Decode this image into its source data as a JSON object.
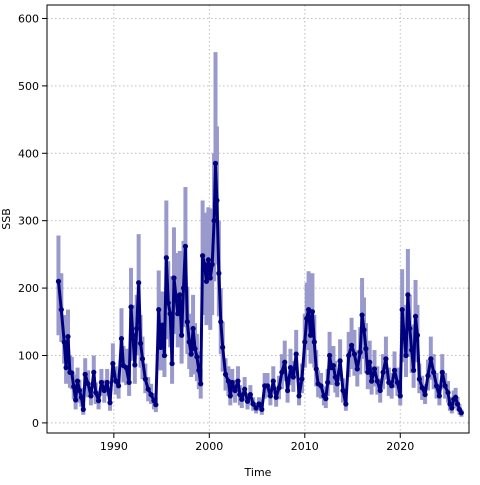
{
  "chart_data": {
    "type": "line",
    "title": "",
    "xlabel": "Time",
    "ylabel": "SSB",
    "xlim": [
      1983.0,
      2027.2
    ],
    "ylim": [
      -15,
      620
    ],
    "x_ticks": [
      1990,
      2000,
      2010,
      2020
    ],
    "y_ticks": [
      0,
      100,
      200,
      300,
      400,
      500,
      600
    ],
    "grid": true,
    "legend": "none",
    "colors": {
      "line": "#00007f",
      "band": "#9999cc",
      "grid": "#bebebe",
      "frame": "#000000"
    },
    "series": [
      {
        "points": [
          [
            1984.2,
            210
          ],
          [
            1984.5,
            168
          ],
          [
            1984.8,
            120
          ],
          [
            1985.0,
            82
          ],
          [
            1985.2,
            128
          ],
          [
            1985.4,
            75
          ],
          [
            1985.6,
            74
          ],
          [
            1985.8,
            54
          ],
          [
            1986.0,
            34
          ],
          [
            1986.2,
            62
          ],
          [
            1986.4,
            48
          ],
          [
            1986.6,
            38
          ],
          [
            1986.8,
            20
          ],
          [
            1987.0,
            72
          ],
          [
            1987.3,
            58
          ],
          [
            1987.6,
            40
          ],
          [
            1987.9,
            75
          ],
          [
            1988.1,
            45
          ],
          [
            1988.4,
            33
          ],
          [
            1988.7,
            60
          ],
          [
            1989.0,
            48
          ],
          [
            1989.3,
            60
          ],
          [
            1989.6,
            30
          ],
          [
            1989.9,
            88
          ],
          [
            1990.2,
            62
          ],
          [
            1990.5,
            55
          ],
          [
            1990.8,
            125
          ],
          [
            1991.0,
            85
          ],
          [
            1991.3,
            82
          ],
          [
            1991.6,
            60
          ],
          [
            1991.8,
            172
          ],
          [
            1992.0,
            130
          ],
          [
            1992.2,
            86
          ],
          [
            1992.4,
            140
          ],
          [
            1992.6,
            208
          ],
          [
            1992.8,
            118
          ],
          [
            1993.0,
            95
          ],
          [
            1993.3,
            65
          ],
          [
            1993.6,
            50
          ],
          [
            1993.9,
            42
          ],
          [
            1994.2,
            33
          ],
          [
            1994.4,
            27
          ],
          [
            1994.7,
            168
          ],
          [
            1994.9,
            112
          ],
          [
            1995.1,
            145
          ],
          [
            1995.3,
            100
          ],
          [
            1995.5,
            245
          ],
          [
            1995.7,
            178
          ],
          [
            1995.9,
            162
          ],
          [
            1996.1,
            88
          ],
          [
            1996.3,
            215
          ],
          [
            1996.5,
            188
          ],
          [
            1996.7,
            162
          ],
          [
            1996.9,
            190
          ],
          [
            1997.1,
            130
          ],
          [
            1997.3,
            200
          ],
          [
            1997.5,
            262
          ],
          [
            1997.7,
            150
          ],
          [
            1997.9,
            120
          ],
          [
            1998.1,
            102
          ],
          [
            1998.3,
            140
          ],
          [
            1998.5,
            110
          ],
          [
            1998.7,
            98
          ],
          [
            1998.9,
            78
          ],
          [
            1999.1,
            58
          ],
          [
            1999.3,
            248
          ],
          [
            1999.5,
            235
          ],
          [
            1999.7,
            210
          ],
          [
            1999.9,
            242
          ],
          [
            2000.1,
            215
          ],
          [
            2000.3,
            235
          ],
          [
            2000.5,
            300
          ],
          [
            2000.65,
            385
          ],
          [
            2000.8,
            330
          ],
          [
            2001.0,
            222
          ],
          [
            2001.2,
            150
          ],
          [
            2001.4,
            112
          ],
          [
            2001.7,
            72
          ],
          [
            2002.0,
            62
          ],
          [
            2002.2,
            40
          ],
          [
            2002.4,
            60
          ],
          [
            2002.7,
            48
          ],
          [
            2003.0,
            62
          ],
          [
            2003.2,
            42
          ],
          [
            2003.4,
            35
          ],
          [
            2003.7,
            50
          ],
          [
            2004.0,
            32
          ],
          [
            2004.3,
            42
          ],
          [
            2004.6,
            28
          ],
          [
            2004.9,
            22
          ],
          [
            2005.2,
            28
          ],
          [
            2005.5,
            20
          ],
          [
            2005.8,
            55
          ],
          [
            2006.1,
            55
          ],
          [
            2006.4,
            40
          ],
          [
            2006.7,
            62
          ],
          [
            2007.0,
            38
          ],
          [
            2007.3,
            52
          ],
          [
            2007.6,
            75
          ],
          [
            2007.9,
            90
          ],
          [
            2008.2,
            48
          ],
          [
            2008.5,
            82
          ],
          [
            2008.8,
            68
          ],
          [
            2009.1,
            102
          ],
          [
            2009.4,
            40
          ],
          [
            2009.7,
            65
          ],
          [
            2010.0,
            120
          ],
          [
            2010.2,
            155
          ],
          [
            2010.4,
            168
          ],
          [
            2010.6,
            130
          ],
          [
            2010.8,
            165
          ],
          [
            2011.0,
            120
          ],
          [
            2011.2,
            80
          ],
          [
            2011.4,
            58
          ],
          [
            2011.7,
            55
          ],
          [
            2012.0,
            40
          ],
          [
            2012.2,
            36
          ],
          [
            2012.4,
            60
          ],
          [
            2012.6,
            100
          ],
          [
            2012.8,
            82
          ],
          [
            2013.0,
            85
          ],
          [
            2013.2,
            68
          ],
          [
            2013.4,
            58
          ],
          [
            2013.7,
            92
          ],
          [
            2014.0,
            48
          ],
          [
            2014.3,
            28
          ],
          [
            2014.6,
            100
          ],
          [
            2014.9,
            115
          ],
          [
            2015.2,
            102
          ],
          [
            2015.5,
            80
          ],
          [
            2015.8,
            105
          ],
          [
            2016.0,
            160
          ],
          [
            2016.2,
            138
          ],
          [
            2016.4,
            110
          ],
          [
            2016.6,
            75
          ],
          [
            2016.8,
            90
          ],
          [
            2017.0,
            62
          ],
          [
            2017.3,
            80
          ],
          [
            2017.6,
            62
          ],
          [
            2017.9,
            48
          ],
          [
            2018.2,
            75
          ],
          [
            2018.5,
            95
          ],
          [
            2018.8,
            60
          ],
          [
            2019.1,
            55
          ],
          [
            2019.4,
            78
          ],
          [
            2019.7,
            60
          ],
          [
            2020.0,
            40
          ],
          [
            2020.2,
            168
          ],
          [
            2020.4,
            130
          ],
          [
            2020.6,
            100
          ],
          [
            2020.8,
            190
          ],
          [
            2021.0,
            140
          ],
          [
            2021.2,
            108
          ],
          [
            2021.4,
            78
          ],
          [
            2021.6,
            158
          ],
          [
            2021.8,
            130
          ],
          [
            2022.0,
            65
          ],
          [
            2022.3,
            52
          ],
          [
            2022.6,
            42
          ],
          [
            2022.9,
            70
          ],
          [
            2023.2,
            95
          ],
          [
            2023.5,
            75
          ],
          [
            2023.8,
            55
          ],
          [
            2024.1,
            40
          ],
          [
            2024.4,
            75
          ],
          [
            2024.7,
            55
          ],
          [
            2025.0,
            45
          ],
          [
            2025.2,
            28
          ],
          [
            2025.4,
            22
          ],
          [
            2025.6,
            35
          ],
          [
            2025.8,
            38
          ],
          [
            2026.0,
            28
          ],
          [
            2026.2,
            20
          ],
          [
            2026.4,
            15
          ]
        ],
        "lower": [
          130,
          120,
          88,
          58,
          92,
          52,
          50,
          35,
          20,
          42,
          30,
          24,
          12,
          50,
          38,
          26,
          52,
          28,
          20,
          40,
          30,
          40,
          18,
          62,
          42,
          36,
          90,
          60,
          56,
          40,
          125,
          92,
          58,
          100,
          150,
          82,
          65,
          44,
          32,
          28,
          20,
          16,
          122,
          78,
          102,
          68,
          178,
          124,
          112,
          58,
          155,
          132,
          112,
          135,
          88,
          142,
          190,
          102,
          80,
          68,
          95,
          72,
          62,
          50,
          36,
          170,
          160,
          145,
          165,
          138,
          160,
          210,
          290,
          235,
          158,
          102,
          76,
          48,
          40,
          26,
          40,
          30,
          40,
          26,
          22,
          32,
          20,
          26,
          18,
          14,
          18,
          12,
          36,
          38,
          26,
          42,
          24,
          35,
          50,
          62,
          30,
          56,
          46,
          70,
          26,
          44,
          82,
          108,
          118,
          88,
          115,
          82,
          54,
          38,
          36,
          26,
          22,
          40,
          70,
          56,
          58,
          45,
          38,
          62,
          30,
          18,
          68,
          80,
          70,
          54,
          72,
          112,
          95,
          74,
          50,
          60,
          42,
          54,
          42,
          30,
          50,
          64,
          40,
          36,
          52,
          40,
          26,
          118,
          90,
          68,
          135,
          98,
          74,
          52,
          110,
          90,
          44,
          34,
          28,
          48,
          64,
          50,
          36,
          26,
          50,
          36,
          30,
          18,
          14,
          22,
          26,
          18,
          12,
          9
        ],
        "upper": [
          278,
          222,
          160,
          110,
          168,
          100,
          98,
          72,
          46,
          82,
          64,
          52,
          28,
          96,
          78,
          54,
          100,
          60,
          44,
          80,
          64,
          80,
          42,
          118,
          84,
          74,
          170,
          114,
          110,
          80,
          230,
          175,
          115,
          190,
          280,
          160,
          128,
          88,
          68,
          58,
          44,
          38,
          226,
          150,
          195,
          134,
          330,
          240,
          218,
          118,
          290,
          252,
          218,
          255,
          175,
          270,
          350,
          202,
          162,
          138,
          190,
          148,
          132,
          106,
          80,
          330,
          312,
          282,
          320,
          290,
          318,
          400,
          550,
          440,
          300,
          200,
          150,
          96,
          84,
          54,
          80,
          64,
          84,
          56,
          48,
          68,
          44,
          56,
          38,
          30,
          38,
          28,
          74,
          74,
          54,
          84,
          52,
          70,
          102,
          122,
          66,
          110,
          92,
          138,
          54,
          88,
          162,
          208,
          225,
          176,
          222,
          160,
          108,
          78,
          74,
          54,
          48,
          80,
          135,
          110,
          114,
          92,
          78,
          124,
          66,
          38,
          135,
          156,
          138,
          108,
          142,
          215,
          186,
          148,
          102,
          122,
          84,
          108,
          84,
          66,
          102,
          128,
          82,
          74,
          106,
          82,
          54,
          228,
          175,
          135,
          258,
          190,
          146,
          106,
          212,
          175,
          88,
          70,
          58,
          94,
          128,
          102,
          74,
          54,
          102,
          74,
          62,
          38,
          30,
          48,
          52,
          38,
          28,
          20
        ]
      }
    ]
  }
}
